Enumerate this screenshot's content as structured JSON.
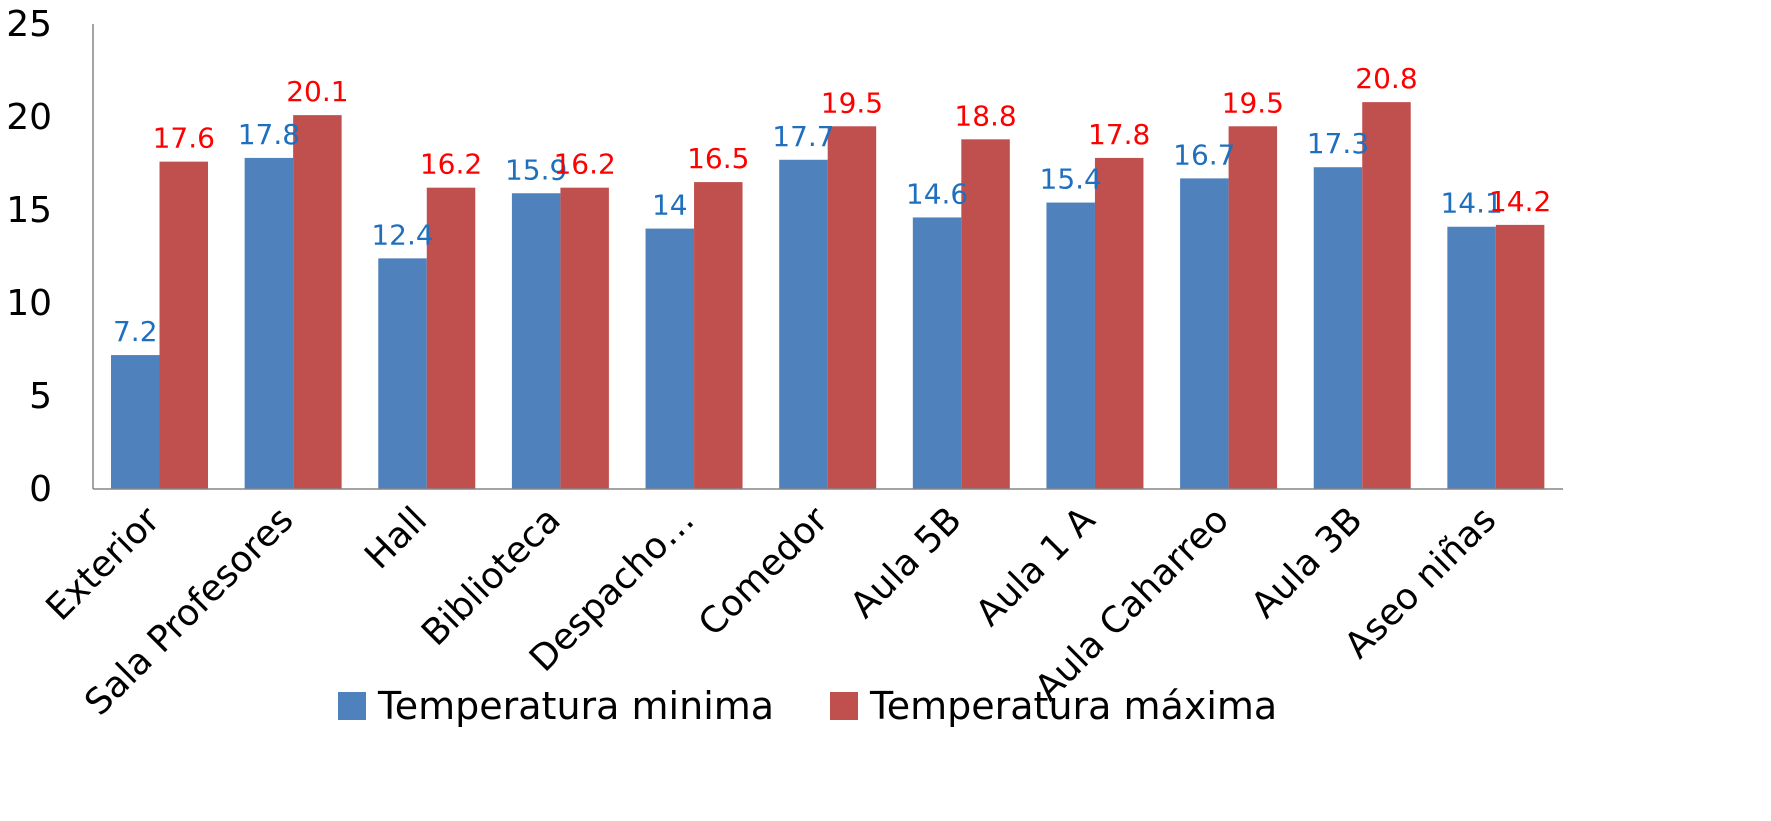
{
  "chart_data": {
    "type": "bar",
    "categories": [
      "Exterior",
      "Sala Profesores",
      "Hall",
      "Biblioteca",
      "Despacho…",
      "Comedor",
      "Aula 5B",
      "Aula 1 A",
      "Aula Caharreo",
      "Aula 3B",
      "Aseo niñas"
    ],
    "series": [
      {
        "name": "Temperatura minima",
        "color": "#4F81BD",
        "label_color": "#1F6FBF",
        "values": [
          7.2,
          17.8,
          12.4,
          15.9,
          14,
          17.7,
          14.6,
          15.4,
          16.7,
          17.3,
          14.1
        ]
      },
      {
        "name": "Temperatura máxima",
        "color": "#C0504D",
        "label_color": "#FF0000",
        "values": [
          17.6,
          20.1,
          16.2,
          16.2,
          16.5,
          19.5,
          18.8,
          17.8,
          19.5,
          20.8,
          14.2
        ]
      }
    ],
    "ylim": [
      0,
      25
    ],
    "yticks": [
      0,
      5,
      10,
      15,
      20,
      25
    ],
    "title": "",
    "xlabel": "",
    "ylabel": "",
    "grid": false,
    "legend_position": "bottom"
  }
}
